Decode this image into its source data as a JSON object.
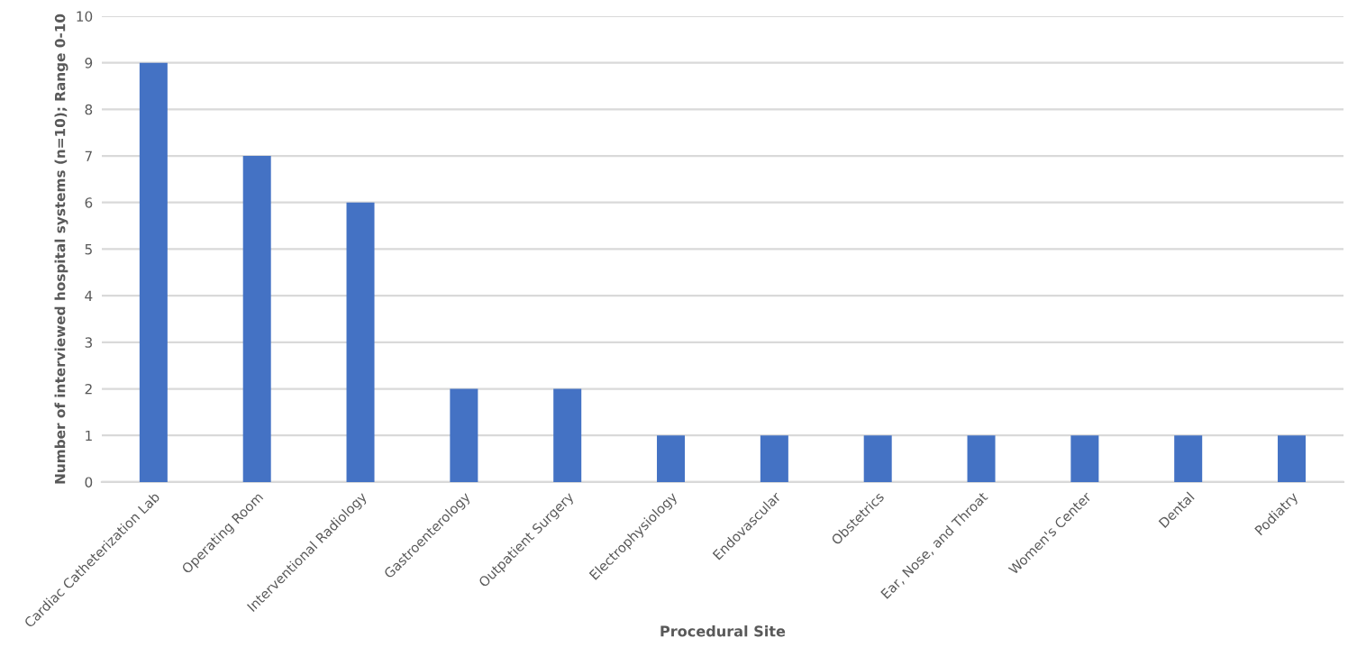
{
  "chart_data": {
    "type": "bar",
    "xlabel": "Procedural Site",
    "ylabel": "Number of interviewed hospital systems (n=10); Range 0-10",
    "categories": [
      "Cardiac Catheterization Lab",
      "Operating Room",
      "Interventional Radiology",
      "Gastroenterology",
      "Outpatient Surgery",
      "Electrophysiology",
      "Endovascular",
      "Obstetrics",
      "Ear, Nose, and Throat",
      "Women's Center",
      "Dental",
      "Podiatry"
    ],
    "values": [
      9,
      7,
      6,
      2,
      2,
      1,
      1,
      1,
      1,
      1,
      1,
      1
    ],
    "color": "#4472c4",
    "ylim": [
      0,
      10
    ],
    "yticks": [
      0,
      1,
      2,
      3,
      4,
      5,
      6,
      7,
      8,
      9,
      10
    ],
    "grid": "y"
  }
}
